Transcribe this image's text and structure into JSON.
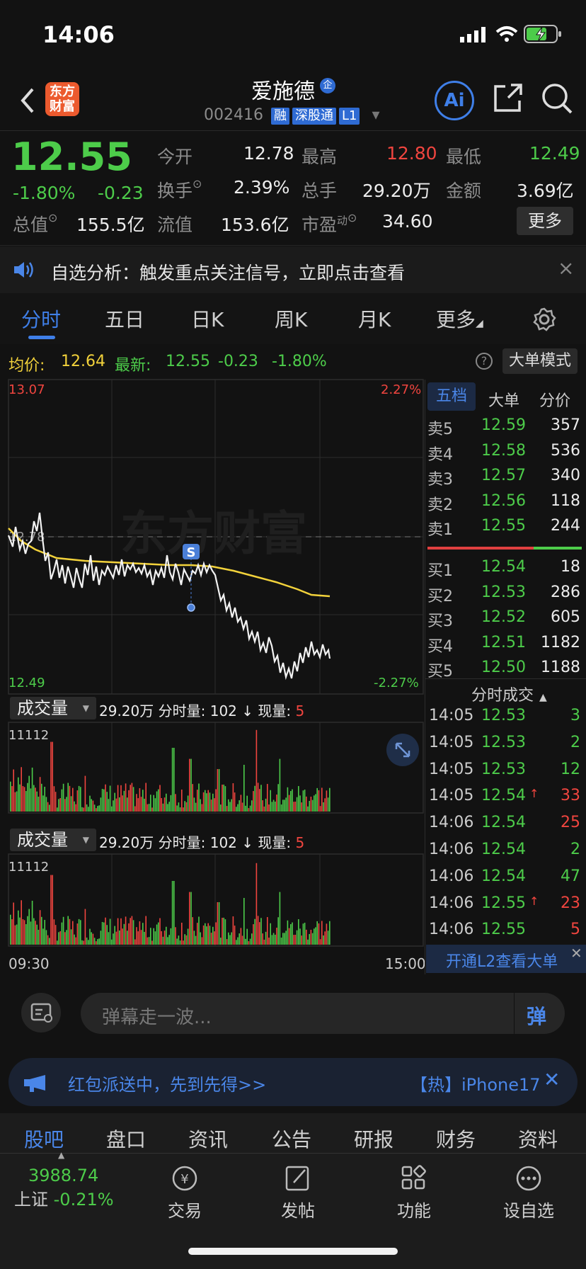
{
  "status": {
    "time": "14:06"
  },
  "header": {
    "name": "爱施德",
    "code": "002416",
    "tags": [
      "融",
      "深股通",
      "L1"
    ],
    "enterprise_badge": "企",
    "logo": "东方\n财富",
    "ai": "Ai"
  },
  "quote": {
    "price": "12.55",
    "pct": "-1.80%",
    "chg": "-0.23",
    "open_label": "今开",
    "open": "12.78",
    "high_label": "最高",
    "high": "12.80",
    "low_label": "最低",
    "low": "12.49",
    "turnover_label": "换手",
    "turnover": "2.39%",
    "volume_label": "总手",
    "volume": "29.20万",
    "amount_label": "金额",
    "amount": "3.69亿",
    "mcap_label": "总值",
    "mcap": "155.5亿",
    "float_label": "流值",
    "float": "153.6亿",
    "pe_label": "市盈",
    "pe_sup": "动",
    "pe": "34.60",
    "more": "更多"
  },
  "notice": {
    "text": "自选分析：触发重点关注信号，立即点击查看"
  },
  "tabs": [
    "分时",
    "五日",
    "日K",
    "周K",
    "月K",
    "更多"
  ],
  "chart_info": {
    "avg_label": "均价:",
    "avg": "12.64",
    "latest_label": "最新:",
    "latest": "12.55",
    "chg": "-0.23",
    "pct": "-1.80%",
    "mode_btn": "大单模式"
  },
  "chart_labels": {
    "top_price": "13.07",
    "top_pct": "2.27%",
    "bot_price": "12.49",
    "bot_pct": "-2.27%",
    "mid_price": "12.78",
    "marker": "S",
    "watermark": "东方财富",
    "t_start": "09:30",
    "t_end": "15:00"
  },
  "volume_panels": [
    {
      "label": "成交量",
      "info1": "29.20万",
      "info2": "分时量: 102 ↓ 现量:",
      "info3": "5",
      "max": "11112"
    },
    {
      "label": "成交量",
      "info1": "29.20万",
      "info2": "分时量: 102 ↓ 现量:",
      "info3": "5",
      "max": "11112"
    }
  ],
  "orderbook": {
    "tabs": [
      "五档",
      "大单",
      "分价"
    ],
    "asks": [
      {
        "l": "卖5",
        "p": "12.59",
        "v": "357"
      },
      {
        "l": "卖4",
        "p": "12.58",
        "v": "536"
      },
      {
        "l": "卖3",
        "p": "12.57",
        "v": "340"
      },
      {
        "l": "卖2",
        "p": "12.56",
        "v": "118"
      },
      {
        "l": "卖1",
        "p": "12.55",
        "v": "244"
      }
    ],
    "bids": [
      {
        "l": "买1",
        "p": "12.54",
        "v": "18"
      },
      {
        "l": "买2",
        "p": "12.53",
        "v": "286"
      },
      {
        "l": "买3",
        "p": "12.52",
        "v": "605"
      },
      {
        "l": "买4",
        "p": "12.51",
        "v": "1182"
      },
      {
        "l": "买5",
        "p": "12.50",
        "v": "1188"
      }
    ]
  },
  "trades": {
    "title": "分时成交",
    "rows": [
      {
        "t": "14:05",
        "p": "12.53",
        "v": "3",
        "up": "",
        "c": "green"
      },
      {
        "t": "14:05",
        "p": "12.53",
        "v": "2",
        "up": "",
        "c": "green"
      },
      {
        "t": "14:05",
        "p": "12.53",
        "v": "12",
        "up": "",
        "c": "green"
      },
      {
        "t": "14:05",
        "p": "12.54",
        "v": "33",
        "up": "↑",
        "c": "red"
      },
      {
        "t": "14:06",
        "p": "12.54",
        "v": "25",
        "up": "",
        "c": "red"
      },
      {
        "t": "14:06",
        "p": "12.54",
        "v": "2",
        "up": "",
        "c": "green"
      },
      {
        "t": "14:06",
        "p": "12.54",
        "v": "47",
        "up": "",
        "c": "green"
      },
      {
        "t": "14:06",
        "p": "12.55",
        "v": "23",
        "up": "↑",
        "c": "red"
      },
      {
        "t": "14:06",
        "p": "12.55",
        "v": "5",
        "up": "",
        "c": "red"
      }
    ],
    "l2": "开通L2查看大单"
  },
  "comment": {
    "placeholder": "弹幕走一波...",
    "send": "弹"
  },
  "ad": {
    "text": "红包派送中，先到先得>>",
    "hot": "【热】iPhone17"
  },
  "nav": [
    "股吧",
    "盘口",
    "资讯",
    "公告",
    "研报",
    "财务",
    "资料"
  ],
  "bottom": {
    "index_val": "3988.74",
    "index_name": "上证",
    "index_pct": "-0.21%",
    "items": [
      "交易",
      "发帖",
      "功能",
      "设自选"
    ]
  },
  "colors": {
    "up": "#f0453f",
    "down": "#4dcc4a",
    "avg": "#f2d23b",
    "accent": "#2f6bd3"
  }
}
